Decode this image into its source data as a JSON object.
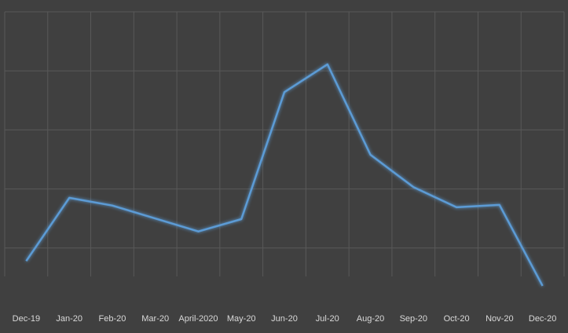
{
  "chart_data": {
    "type": "line",
    "categories": [
      "Dec-19",
      "Jan-20",
      "Feb-20",
      "Mar-20",
      "April-2020",
      "May-20",
      "Jun-20",
      "Jul-20",
      "Aug-20",
      "Sep-20",
      "Oct-20",
      "Nov-20",
      "Dec-20"
    ],
    "values": [
      0.78,
      1.85,
      1.72,
      1.5,
      1.28,
      1.49,
      3.64,
      4.11,
      2.58,
      2.03,
      1.69,
      1.73,
      0.36
    ],
    "color": "#5b9bd5",
    "ylim": [
      0,
      5
    ],
    "yticks": [
      1,
      2,
      3,
      4,
      5
    ],
    "grid": true,
    "y_tick_labels": false
  }
}
